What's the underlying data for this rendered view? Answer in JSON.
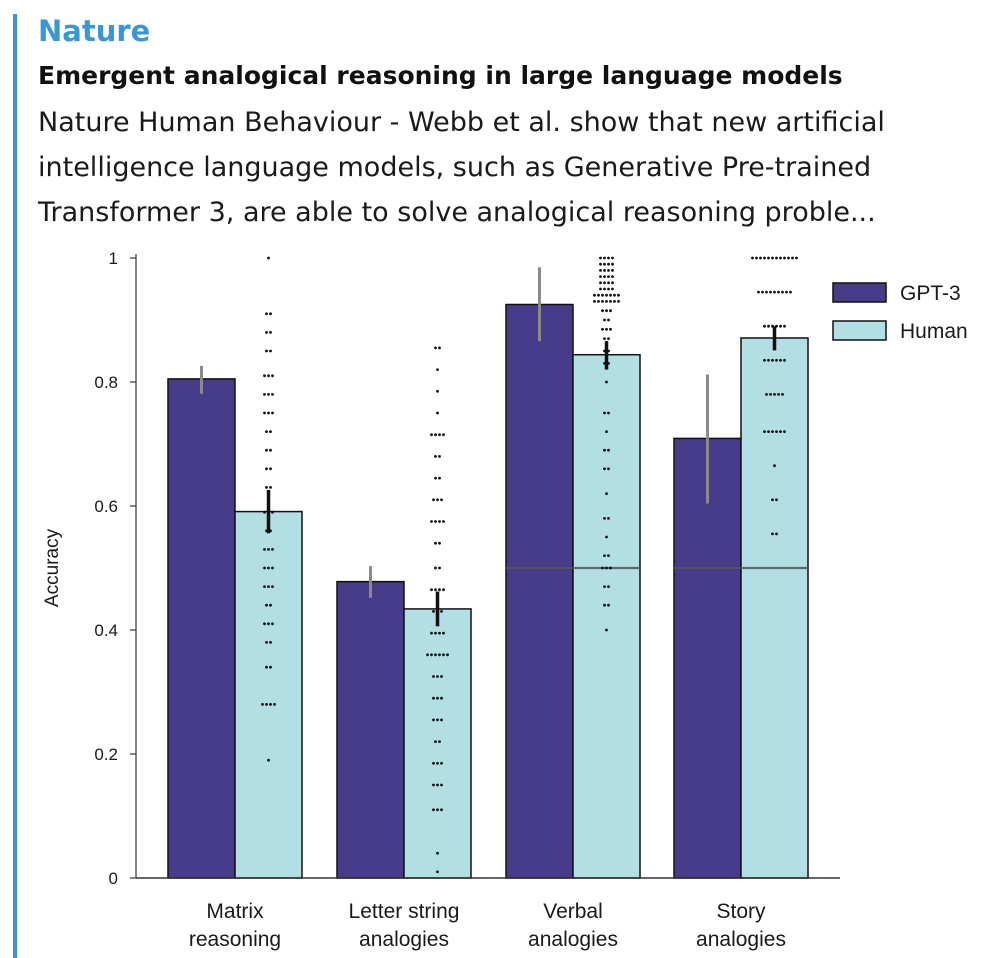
{
  "card": {
    "source": "Nature",
    "title": "Emergent analogical reasoning in large language models",
    "description": "Nature Human Behaviour - Webb et al. show that new artificial intelligence language models, such as Generative Pre-trained Transformer 3, are able to solve analogical reasoning proble..."
  },
  "chart_data": {
    "type": "bar",
    "title": "",
    "xlabel": "",
    "ylabel": "Accuracy",
    "ylim": [
      0,
      1
    ],
    "yticks": [
      0,
      0.2,
      0.4,
      0.6,
      0.8,
      1
    ],
    "ytick_labels": [
      "0",
      "0.2",
      "0.4",
      "0.6",
      "0.8",
      "1"
    ],
    "categories": [
      [
        "Matrix",
        "reasoning"
      ],
      [
        "Letter string",
        "analogies"
      ],
      [
        "Verbal",
        "analogies"
      ],
      [
        "Story",
        "analogies"
      ]
    ],
    "legend_position": "top-right",
    "series": [
      {
        "name": "GPT-3",
        "color": "#463c8a",
        "values": [
          0.805,
          0.478,
          0.925,
          0.709
        ],
        "error_low": [
          0.781,
          0.452,
          0.866,
          0.604
        ],
        "error_high": [
          0.826,
          0.503,
          0.985,
          0.812
        ]
      },
      {
        "name": "Human",
        "color": "#b2dfe4",
        "values": [
          0.591,
          0.434,
          0.844,
          0.871
        ],
        "error_low": [
          0.556,
          0.406,
          0.82,
          0.851
        ],
        "error_high": [
          0.626,
          0.462,
          0.866,
          0.89
        ]
      }
    ],
    "chance_lines": [
      {
        "category": 2,
        "value": 0.5
      },
      {
        "category": 3,
        "value": 0.5
      }
    ],
    "human_individual_scores": [
      {
        "category": 0,
        "rows": [
          [
            1.0,
            1
          ],
          [
            0.91,
            2
          ],
          [
            0.88,
            2
          ],
          [
            0.85,
            2
          ],
          [
            0.81,
            3
          ],
          [
            0.78,
            3
          ],
          [
            0.75,
            3
          ],
          [
            0.72,
            2
          ],
          [
            0.69,
            2
          ],
          [
            0.66,
            2
          ],
          [
            0.63,
            2
          ],
          [
            0.59,
            3
          ],
          [
            0.56,
            2
          ],
          [
            0.53,
            3
          ],
          [
            0.5,
            3
          ],
          [
            0.47,
            3
          ],
          [
            0.44,
            2
          ],
          [
            0.41,
            3
          ],
          [
            0.38,
            2
          ],
          [
            0.34,
            2
          ],
          [
            0.28,
            4
          ],
          [
            0.19,
            1
          ]
        ]
      },
      {
        "category": 1,
        "rows": [
          [
            0.855,
            2
          ],
          [
            0.82,
            1
          ],
          [
            0.785,
            1
          ],
          [
            0.75,
            1
          ],
          [
            0.715,
            4
          ],
          [
            0.68,
            2
          ],
          [
            0.645,
            2
          ],
          [
            0.61,
            3
          ],
          [
            0.575,
            4
          ],
          [
            0.54,
            2
          ],
          [
            0.5,
            2
          ],
          [
            0.465,
            4
          ],
          [
            0.43,
            3
          ],
          [
            0.395,
            4
          ],
          [
            0.36,
            6
          ],
          [
            0.325,
            3
          ],
          [
            0.29,
            3
          ],
          [
            0.255,
            3
          ],
          [
            0.22,
            2
          ],
          [
            0.185,
            3
          ],
          [
            0.15,
            3
          ],
          [
            0.11,
            3
          ],
          [
            0.04,
            1
          ],
          [
            0.01,
            1
          ]
        ]
      },
      {
        "category": 2,
        "rows": [
          [
            1.0,
            4
          ],
          [
            0.99,
            4
          ],
          [
            0.98,
            4
          ],
          [
            0.97,
            4
          ],
          [
            0.96,
            4
          ],
          [
            0.95,
            4
          ],
          [
            0.94,
            7
          ],
          [
            0.93,
            7
          ],
          [
            0.915,
            3
          ],
          [
            0.9,
            2
          ],
          [
            0.885,
            3
          ],
          [
            0.87,
            2
          ],
          [
            0.85,
            2
          ],
          [
            0.83,
            2
          ],
          [
            0.8,
            1
          ],
          [
            0.75,
            2
          ],
          [
            0.72,
            1
          ],
          [
            0.69,
            2
          ],
          [
            0.66,
            2
          ],
          [
            0.62,
            1
          ],
          [
            0.58,
            2
          ],
          [
            0.55,
            1
          ],
          [
            0.52,
            2
          ],
          [
            0.5,
            3
          ],
          [
            0.47,
            2
          ],
          [
            0.44,
            2
          ],
          [
            0.4,
            1
          ]
        ]
      },
      {
        "category": 3,
        "rows": [
          [
            1.0,
            12
          ],
          [
            0.945,
            9
          ],
          [
            0.89,
            6
          ],
          [
            0.835,
            6
          ],
          [
            0.78,
            5
          ],
          [
            0.72,
            6
          ],
          [
            0.665,
            1
          ],
          [
            0.61,
            2
          ],
          [
            0.555,
            2
          ]
        ]
      }
    ]
  }
}
